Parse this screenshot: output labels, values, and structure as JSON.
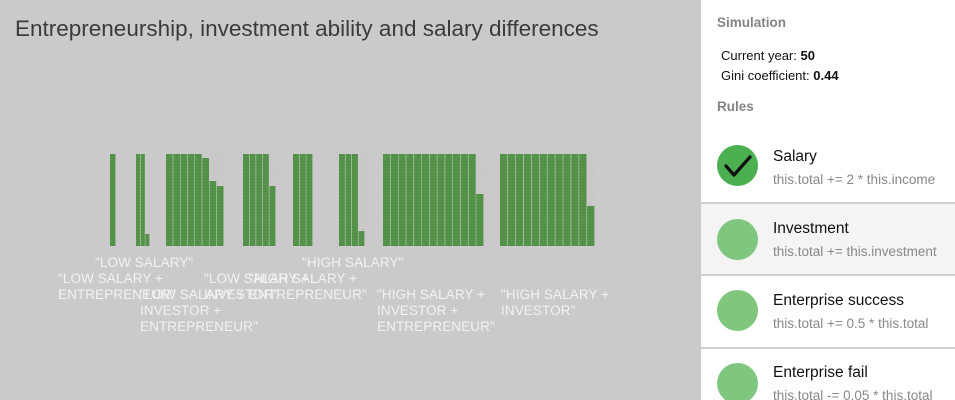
{
  "title": "Entrepreneurship, investment ability and salary differences",
  "sidebar": {
    "simulation_heading": "Simulation",
    "current_year_label": "Current year: ",
    "current_year": "50",
    "gini_label": "Gini coefficient: ",
    "gini": "0.44",
    "rules_heading": "Rules",
    "rules": [
      {
        "name": "Salary",
        "code": "this.total += 2 * this.income",
        "active": true
      },
      {
        "name": "Investment",
        "code": "this.total += this.investment",
        "active": false
      },
      {
        "name": "Enterprise success",
        "code": "this.total += 0.5 * this.total",
        "active": false
      },
      {
        "name": "Enterprise fail",
        "code": "this.total -= 0.05 * this.total",
        "active": false
      }
    ]
  },
  "groups": [
    {
      "label": "\"LOW SALARY +\nENTREPRENEUR\""
    },
    {
      "label": "\"LOW SALARY\""
    },
    {
      "label": "\"LOW SALARY +\nINVESTOR +\nENTREPRENEUR\""
    },
    {
      "label": "\"LOW SALARY +\nINVESTOR\""
    },
    {
      "label": "\"HIGH SALARY +\nENTREPRENEUR\""
    },
    {
      "label": "\"HIGH SALARY\""
    },
    {
      "label": "\"HIGH SALARY +\nINVESTOR +\nENTREPRENEUR\""
    },
    {
      "label": "\"HIGH SALARY +\nINVESTOR\""
    }
  ],
  "colors": {
    "bar": "#4f8f45",
    "bar_line": "#9ac48e",
    "active_circle": "#4caf50",
    "circle": "#7fc77f"
  },
  "icons": {
    "check": "check-icon"
  }
}
